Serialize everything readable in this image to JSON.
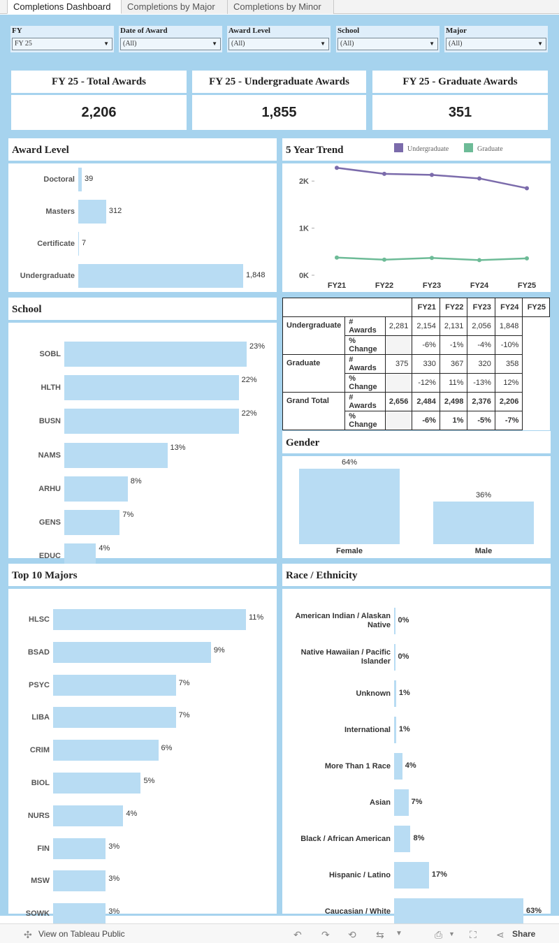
{
  "tabs": [
    "Completions Dashboard",
    "Completions by Major",
    "Completions by Minor"
  ],
  "filters": [
    {
      "label": "FY",
      "value": "FY 25"
    },
    {
      "label": "Date of Award",
      "value": "(All)"
    },
    {
      "label": "Award Level",
      "value": "(All)"
    },
    {
      "label": "School",
      "value": "(All)"
    },
    {
      "label": "Major",
      "value": "(All)"
    }
  ],
  "kpis": [
    {
      "title": "FY 25 - Total Awards",
      "value": "2,206"
    },
    {
      "title": "FY 25 - Undergraduate Awards",
      "value": "1,855"
    },
    {
      "title": "FY 25 - Graduate Awards",
      "value": "351"
    }
  ],
  "award_level": {
    "title": "Award Level",
    "items": [
      {
        "label": "Doctoral",
        "value": 39,
        "text": "39"
      },
      {
        "label": "Masters",
        "value": 312,
        "text": "312"
      },
      {
        "label": "Certificate",
        "value": 7,
        "text": "7"
      },
      {
        "label": "Undergraduate",
        "value": 1848,
        "text": "1,848"
      }
    ]
  },
  "trend": {
    "title": "5 Year Trend",
    "legend": [
      {
        "name": "Undergraduate",
        "color": "#7b6bab"
      },
      {
        "name": "Graduate",
        "color": "#6dbb97"
      }
    ],
    "y_ticks": [
      "2K",
      "1K",
      "0K"
    ]
  },
  "chart_data": {
    "type": "line",
    "x": [
      "FY21",
      "FY22",
      "FY23",
      "FY24",
      "FY25"
    ],
    "ylim": [
      0,
      2300
    ],
    "series": [
      {
        "name": "Undergraduate",
        "values": [
          2281,
          2154,
          2131,
          2056,
          1848
        ]
      },
      {
        "name": "Graduate",
        "values": [
          375,
          330,
          367,
          320,
          358
        ]
      }
    ]
  },
  "trend_table": {
    "years": [
      "FY21",
      "FY22",
      "FY23",
      "FY24",
      "FY25"
    ],
    "groups": [
      {
        "name": "Undergraduate",
        "awards_label": "# Awards",
        "awards": [
          "2,281",
          "2,154",
          "2,131",
          "2,056",
          "1,848"
        ],
        "change_label": "% Change",
        "change": [
          "",
          "-6%",
          "-1%",
          "-4%",
          "-10%"
        ],
        "bold": false
      },
      {
        "name": "Graduate",
        "awards_label": "# Awards",
        "awards": [
          "375",
          "330",
          "367",
          "320",
          "358"
        ],
        "change_label": "% Change",
        "change": [
          "",
          "-12%",
          "11%",
          "-13%",
          "12%"
        ],
        "bold": false
      },
      {
        "name": "Grand Total",
        "awards_label": "# Awards",
        "awards": [
          "2,656",
          "2,484",
          "2,498",
          "2,376",
          "2,206"
        ],
        "change_label": "% Change",
        "change": [
          "",
          "-6%",
          "1%",
          "-5%",
          "-7%"
        ],
        "bold": true
      }
    ]
  },
  "school": {
    "title": "School",
    "items": [
      {
        "label": "SOBL",
        "value": 23,
        "text": "23%"
      },
      {
        "label": "HLTH",
        "value": 22,
        "text": "22%"
      },
      {
        "label": "BUSN",
        "value": 22,
        "text": "22%"
      },
      {
        "label": "NAMS",
        "value": 13,
        "text": "13%"
      },
      {
        "label": "ARHU",
        "value": 8,
        "text": "8%"
      },
      {
        "label": "GENS",
        "value": 7,
        "text": "7%"
      },
      {
        "label": "EDUC",
        "value": 4,
        "text": "4%"
      }
    ]
  },
  "gender": {
    "title": "Gender",
    "items": [
      {
        "label": "Female",
        "value": 64,
        "text": "64%"
      },
      {
        "label": "Male",
        "value": 36,
        "text": "36%"
      }
    ]
  },
  "majors": {
    "title": "Top 10 Majors",
    "items": [
      {
        "label": "HLSC",
        "value": 11,
        "text": "11%"
      },
      {
        "label": "BSAD",
        "value": 9,
        "text": "9%"
      },
      {
        "label": "PSYC",
        "value": 7,
        "text": "7%"
      },
      {
        "label": "LIBA",
        "value": 7,
        "text": "7%"
      },
      {
        "label": "CRIM",
        "value": 6,
        "text": "6%"
      },
      {
        "label": "BIOL",
        "value": 5,
        "text": "5%"
      },
      {
        "label": "NURS",
        "value": 4,
        "text": "4%"
      },
      {
        "label": "FIN",
        "value": 3,
        "text": "3%"
      },
      {
        "label": "MSW",
        "value": 3,
        "text": "3%"
      },
      {
        "label": "SOWK",
        "value": 3,
        "text": "3%"
      }
    ]
  },
  "race": {
    "title": "Race / Ethnicity",
    "items": [
      {
        "label": "American Indian / Alaskan Native",
        "value": 0,
        "text": "0%"
      },
      {
        "label": "Native Hawaiian / Pacific Islander",
        "value": 0,
        "text": "0%"
      },
      {
        "label": "Unknown",
        "value": 1,
        "text": "1%"
      },
      {
        "label": "International",
        "value": 1,
        "text": "1%"
      },
      {
        "label": "More Than 1 Race",
        "value": 4,
        "text": "4%"
      },
      {
        "label": "Asian",
        "value": 7,
        "text": "7%"
      },
      {
        "label": "Black / African American",
        "value": 8,
        "text": "8%"
      },
      {
        "label": "Hispanic / Latino",
        "value": 17,
        "text": "17%"
      },
      {
        "label": "Caucasian / White",
        "value": 63,
        "text": "63%"
      }
    ]
  },
  "footer": {
    "view_label": "View on Tableau Public",
    "share_label": "Share"
  }
}
